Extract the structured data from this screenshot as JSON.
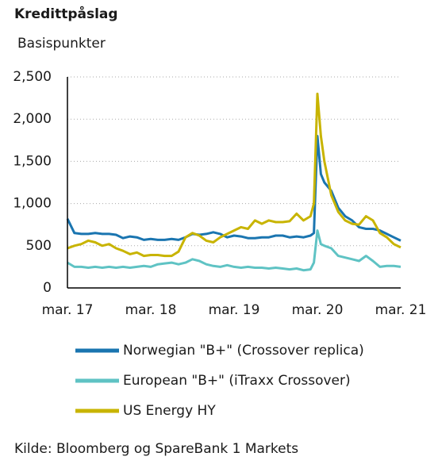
{
  "chart_data": {
    "type": "line",
    "title": "Kredittpåslag",
    "y_label": "Basispunkter",
    "source": "Kilde: Bloomberg og SpareBank 1 Markets",
    "x": [
      0,
      1,
      2,
      3,
      4,
      5,
      6,
      7,
      8,
      9,
      10,
      11,
      12,
      13,
      14,
      15,
      16,
      17,
      18,
      19,
      20,
      21,
      22,
      23,
      24,
      25,
      26,
      27,
      28,
      29,
      30,
      31,
      32,
      33,
      34,
      35,
      35.5,
      36,
      36.5,
      37,
      38,
      39,
      40,
      41,
      42,
      43,
      44,
      45,
      46,
      47,
      48
    ],
    "xlim": [
      0,
      48
    ],
    "xticks": [
      {
        "value": 0,
        "label": "mar. 17"
      },
      {
        "value": 12,
        "label": "mar. 18"
      },
      {
        "value": 24,
        "label": "mar. 19"
      },
      {
        "value": 36,
        "label": "mar. 20"
      },
      {
        "value": 48,
        "label": "mar. 21"
      }
    ],
    "ylim": [
      0,
      2500
    ],
    "yticks": [
      0,
      500,
      {
        "value": 1000,
        "label": "1,000"
      },
      {
        "value": 1500,
        "label": "1,500"
      },
      {
        "value": 2000,
        "label": "2,000"
      },
      {
        "value": 2500,
        "label": "2,500"
      }
    ],
    "grid": true,
    "series": [
      {
        "name": "Norwegian \"B+\" (Crossover replica)",
        "color": "#1a75b0",
        "values": [
          820,
          650,
          640,
          640,
          650,
          640,
          640,
          630,
          590,
          610,
          600,
          570,
          580,
          570,
          570,
          580,
          570,
          600,
          640,
          630,
          640,
          660,
          640,
          600,
          620,
          610,
          590,
          590,
          600,
          600,
          620,
          620,
          600,
          610,
          600,
          620,
          650,
          1800,
          1350,
          1250,
          1150,
          950,
          850,
          800,
          720,
          700,
          700,
          680,
          640,
          600,
          560
        ]
      },
      {
        "name": "European \"B+\" (iTraxx Crossover)",
        "color": "#5fc3c4",
        "values": [
          300,
          250,
          250,
          240,
          250,
          240,
          250,
          240,
          250,
          240,
          250,
          260,
          250,
          280,
          290,
          300,
          280,
          300,
          340,
          320,
          280,
          260,
          250,
          270,
          250,
          240,
          250,
          240,
          240,
          230,
          240,
          230,
          220,
          230,
          210,
          220,
          300,
          680,
          520,
          500,
          470,
          380,
          360,
          340,
          320,
          380,
          320,
          250,
          260,
          260,
          250
        ]
      },
      {
        "name": "US Energy HY",
        "color": "#c8b400",
        "values": [
          470,
          500,
          520,
          560,
          540,
          500,
          520,
          470,
          440,
          400,
          420,
          380,
          390,
          390,
          380,
          380,
          430,
          600,
          650,
          620,
          560,
          540,
          600,
          640,
          680,
          720,
          700,
          800,
          760,
          800,
          780,
          780,
          790,
          880,
          800,
          850,
          1000,
          2300,
          1800,
          1500,
          1100,
          900,
          800,
          760,
          750,
          850,
          800,
          650,
          600,
          520,
          480
        ]
      }
    ]
  }
}
